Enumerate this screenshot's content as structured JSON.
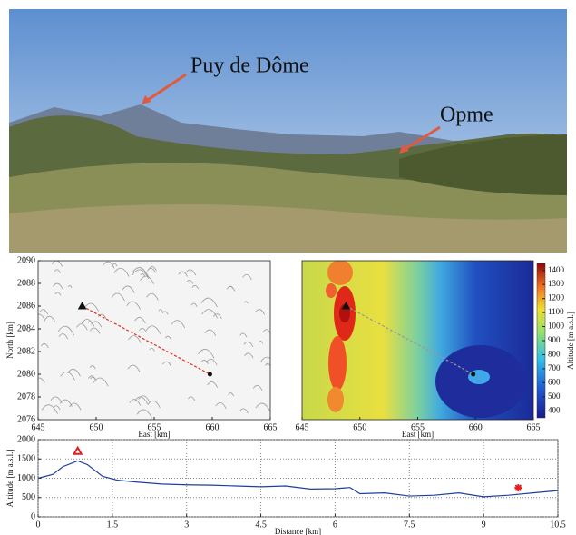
{
  "photo": {
    "labels": [
      "Puy de Dôme",
      "Opme"
    ]
  },
  "chart_data": [
    {
      "type": "map",
      "style": "hillshade",
      "xlabel": "East [km]",
      "ylabel": "North [km]",
      "xlim": [
        645,
        665
      ],
      "ylim": [
        2076,
        2090
      ],
      "xticks": [
        645,
        650,
        655,
        660,
        665
      ],
      "yticks": [
        2076,
        2078,
        2080,
        2082,
        2084,
        2086,
        2088,
        2090
      ],
      "markers": [
        {
          "x": 648.8,
          "y": 2086,
          "symbol": "triangle"
        },
        {
          "x": 659.8,
          "y": 2080,
          "symbol": "dot"
        }
      ],
      "path_color": "#e03020"
    },
    {
      "type": "map",
      "style": "elevation",
      "xlabel": "East [km]",
      "xlim": [
        645,
        665
      ],
      "ylim": [
        2076,
        2090
      ],
      "xticks": [
        645,
        650,
        655,
        660,
        665
      ],
      "markers": [
        {
          "x": 648.8,
          "y": 2086,
          "symbol": "triangle"
        },
        {
          "x": 659.8,
          "y": 2080,
          "symbol": "dot"
        }
      ],
      "path_color": "#999999",
      "colorbar": {
        "label": "Altitude [m a.s.l.]",
        "lim": [
          350,
          1450
        ],
        "ticks": [
          400,
          500,
          600,
          700,
          800,
          900,
          1000,
          1100,
          1200,
          1300,
          1400
        ]
      }
    },
    {
      "type": "line",
      "xlabel": "Distance [km]",
      "ylabel": "Altitude [m a.s.l.]",
      "xlim": [
        0,
        10.5
      ],
      "ylim": [
        0,
        2000
      ],
      "xticks": [
        0,
        1.5,
        3,
        4.5,
        6,
        7.5,
        9,
        10.5
      ],
      "yticks": [
        0,
        500,
        1000,
        1500,
        2000
      ],
      "grid": true,
      "color": "#1f3f99",
      "x": [
        0,
        0.3,
        0.5,
        0.8,
        1.0,
        1.3,
        1.6,
        2,
        2.5,
        3,
        3.5,
        4,
        4.5,
        5,
        5.5,
        6,
        6.3,
        6.5,
        7,
        7.5,
        8,
        8.5,
        9,
        9.5,
        10,
        10.5
      ],
      "y": [
        1000,
        1100,
        1300,
        1450,
        1350,
        1050,
        950,
        900,
        850,
        830,
        820,
        800,
        780,
        800,
        720,
        730,
        760,
        600,
        620,
        540,
        560,
        620,
        520,
        560,
        620,
        680
      ],
      "markers": [
        {
          "x": 0.8,
          "y": 1700,
          "symbol": "triangle"
        },
        {
          "x": 9.7,
          "y": 750,
          "symbol": "asterisk"
        }
      ],
      "marker_color": "#e02020"
    }
  ]
}
